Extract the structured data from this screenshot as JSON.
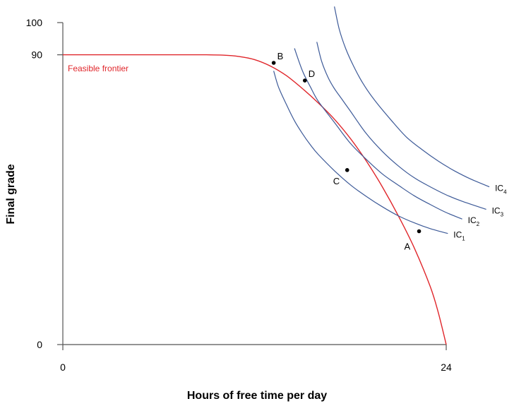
{
  "chart_data": {
    "type": "line",
    "title": "",
    "xlabel": "Hours of free time per day",
    "ylabel": "Final grade",
    "xlim": [
      0,
      24
    ],
    "ylim": [
      0,
      100
    ],
    "x_ticks": [
      "0",
      "24"
    ],
    "y_ticks": [
      "0",
      "90",
      "100"
    ],
    "colors": {
      "frontier": "#e0262b",
      "indifference": "#3d5a98",
      "axis": "#555555",
      "point": "#000000"
    },
    "frontier": {
      "name": "Feasible frontier",
      "x": [
        0,
        2,
        4,
        6,
        8,
        9,
        10,
        11,
        12,
        13,
        14,
        15,
        16,
        17,
        18,
        19,
        20,
        21,
        22,
        23,
        23.5,
        24
      ],
      "y": [
        90,
        90,
        90,
        90,
        90,
        90,
        89.9,
        89.5,
        88.5,
        86.5,
        83.5,
        79.5,
        75,
        70,
        64,
        57,
        49,
        40,
        30,
        18,
        10,
        0
      ]
    },
    "indifference_curves": [
      {
        "name": "IC",
        "subscript": "1",
        "x": [
          13.2,
          13.5,
          14,
          14.5,
          15,
          15.5,
          16,
          17,
          18,
          19,
          20,
          21,
          22,
          23,
          24.1
        ],
        "y": [
          85,
          80,
          74.5,
          69.5,
          65.5,
          62,
          59,
          54,
          49.6,
          46,
          42.8,
          40,
          37.8,
          36,
          34.5
        ]
      },
      {
        "name": "IC",
        "subscript": "2",
        "x": [
          14.5,
          15,
          15.5,
          16,
          17,
          18,
          19,
          20,
          21,
          22,
          23,
          24,
          25,
          24.2
        ],
        "y": [
          92,
          85,
          80,
          75.5,
          69,
          62.5,
          57.5,
          53,
          49.5,
          46.2,
          43.5,
          41,
          39,
          39.5
        ]
      },
      {
        "name": "IC",
        "subscript": "3",
        "x": [
          15.9,
          16.2,
          16.6,
          17,
          17.5,
          18,
          19,
          20,
          21,
          22,
          23,
          24,
          25,
          26.5
        ],
        "y": [
          94,
          88,
          83,
          79.5,
          76,
          72.5,
          65.5,
          60,
          55.5,
          51.8,
          49,
          46.5,
          44.5,
          42
        ]
      },
      {
        "name": "IC",
        "subscript": "4",
        "x": [
          17.0,
          17.3,
          17.7,
          18.2,
          18.8,
          19.5,
          20.5,
          21.5,
          22.5,
          23.5,
          24.5,
          25.5,
          26.7
        ],
        "y": [
          105,
          98,
          92,
          86.5,
          81,
          76,
          70,
          64.5,
          60.5,
          57,
          54,
          51.5,
          49
        ]
      }
    ],
    "points": [
      {
        "label": "B",
        "x": 13.2,
        "y": 87.5
      },
      {
        "label": "D",
        "x": 15.15,
        "y": 82.0
      },
      {
        "label": "C",
        "x": 17.8,
        "y": 54.2
      },
      {
        "label": "A",
        "x": 22.3,
        "y": 35.2
      }
    ],
    "annotations": [
      "Feasible frontier"
    ],
    "legend": "none",
    "grid": false
  }
}
